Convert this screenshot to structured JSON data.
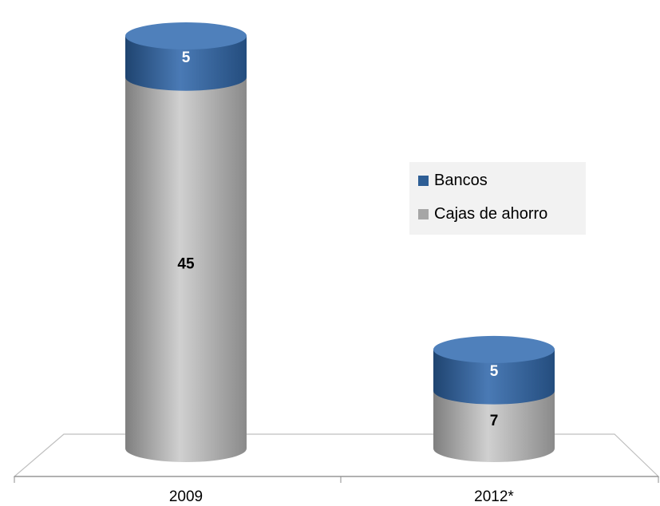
{
  "chart_data": {
    "type": "bar",
    "stacked": true,
    "style": "3d-cylinder",
    "categories": [
      "2009",
      "2012*"
    ],
    "series": [
      {
        "name": "Cajas de ahorro",
        "values": [
          45,
          7
        ],
        "color": "#a6a6a6",
        "label_color": "#000000"
      },
      {
        "name": "Bancos",
        "values": [
          5,
          5
        ],
        "color": "#2e5e95",
        "label_color": "#ffffff"
      }
    ],
    "title": "",
    "xlabel": "",
    "ylabel": "",
    "ylim": [
      0,
      50
    ],
    "grid": false,
    "legend_position": "right"
  }
}
